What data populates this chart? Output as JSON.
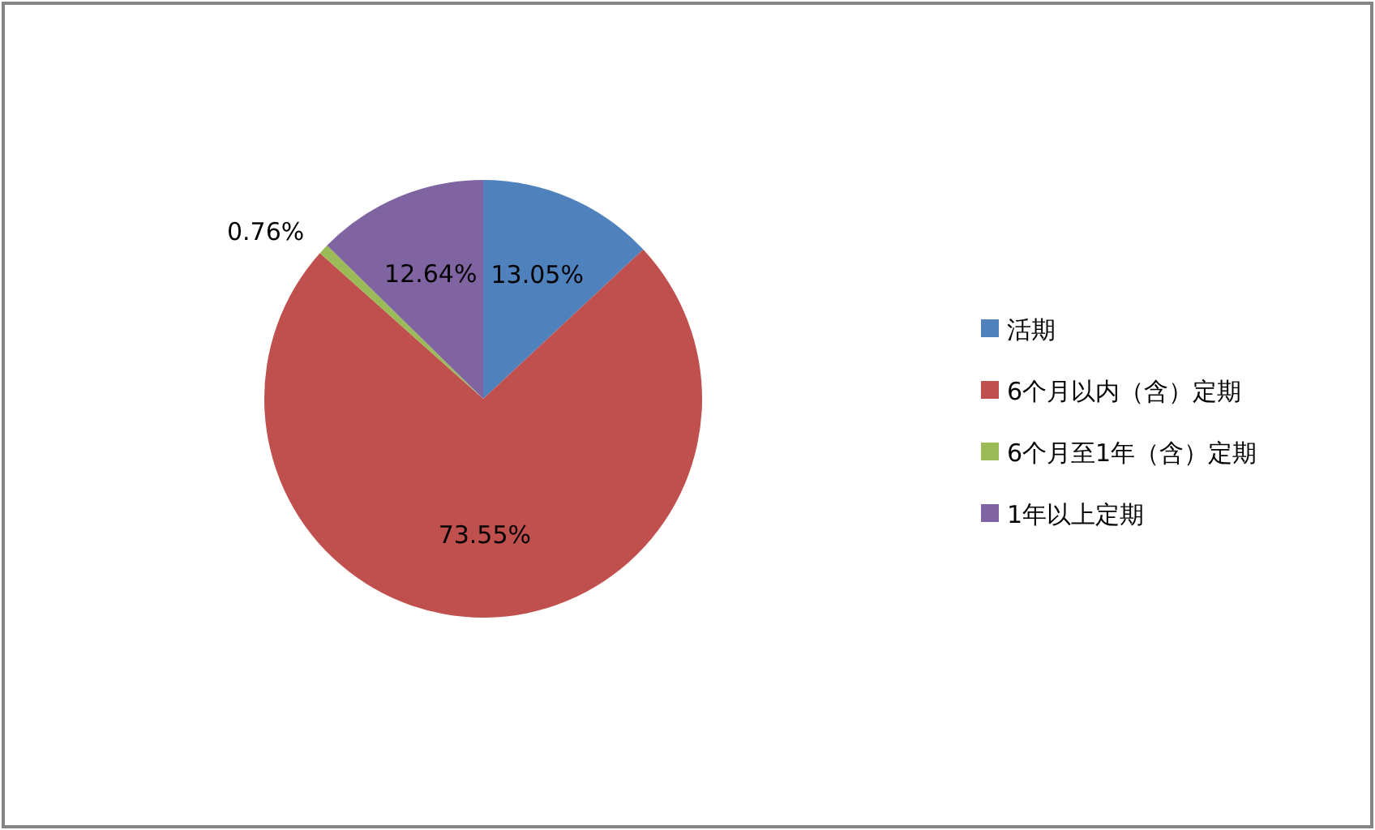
{
  "chart_data": {
    "type": "pie",
    "categories": [
      "活期",
      "6个月以内（含）定期",
      "6个月至1年（含）定期",
      "1年以上定期"
    ],
    "values": [
      13.05,
      73.55,
      0.76,
      12.64
    ],
    "colors": [
      "#4f81bd",
      "#c0504d",
      "#9bbb59",
      "#8064a2"
    ],
    "value_labels": [
      "13.05%",
      "73.55%",
      "0.76%",
      "12.64%"
    ],
    "legend": "right"
  }
}
